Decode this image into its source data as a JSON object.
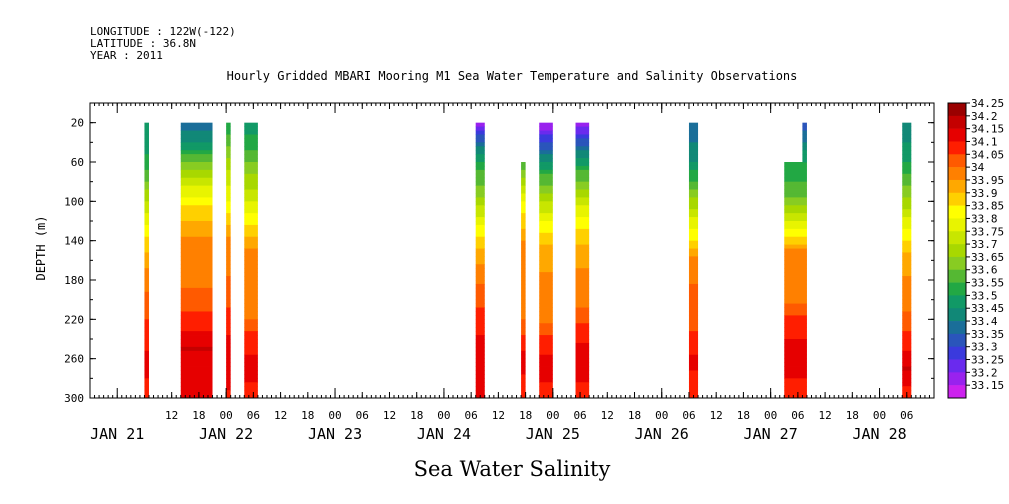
{
  "header": {
    "longitude": "LONGITUDE : 122W(-122)",
    "latitude": "LATITUDE : 36.8N",
    "year": "YEAR : 2011"
  },
  "chart_data": {
    "type": "heatmap",
    "title": "Hourly Gridded MBARI Mooring M1 Sea Water Temperature and Salinity Observations",
    "xlabel": "Sea Water Salinity",
    "ylabel": "DEPTH (m)",
    "x_unit": "hours from JAN 21 00:00",
    "xlim": [
      -6,
      180
    ],
    "ylim": [
      300,
      0
    ],
    "y_inverted": true,
    "y_ticks": [
      20,
      60,
      100,
      140,
      180,
      220,
      260,
      300
    ],
    "x_hour_ticks": [
      {
        "h": 12,
        "label": "12"
      },
      {
        "h": 18,
        "label": "18"
      },
      {
        "h": 24,
        "label": "00"
      },
      {
        "h": 30,
        "label": "06"
      },
      {
        "h": 36,
        "label": "12"
      },
      {
        "h": 42,
        "label": "18"
      },
      {
        "h": 48,
        "label": "00"
      },
      {
        "h": 54,
        "label": "06"
      },
      {
        "h": 60,
        "label": "12"
      },
      {
        "h": 66,
        "label": "18"
      },
      {
        "h": 72,
        "label": "00"
      },
      {
        "h": 78,
        "label": "06"
      },
      {
        "h": 84,
        "label": "12"
      },
      {
        "h": 90,
        "label": "18"
      },
      {
        "h": 96,
        "label": "00"
      },
      {
        "h": 102,
        "label": "06"
      },
      {
        "h": 108,
        "label": "12"
      },
      {
        "h": 114,
        "label": "18"
      },
      {
        "h": 120,
        "label": "00"
      },
      {
        "h": 126,
        "label": "06"
      },
      {
        "h": 132,
        "label": "12"
      },
      {
        "h": 138,
        "label": "18"
      },
      {
        "h": 144,
        "label": "00"
      },
      {
        "h": 150,
        "label": "06"
      },
      {
        "h": 156,
        "label": "12"
      },
      {
        "h": 162,
        "label": "18"
      },
      {
        "h": 168,
        "label": "00"
      },
      {
        "h": 174,
        "label": "06"
      }
    ],
    "x_date_ticks": [
      {
        "h": 0,
        "label": "JAN 21"
      },
      {
        "h": 24,
        "label": "JAN 22"
      },
      {
        "h": 48,
        "label": "JAN 23"
      },
      {
        "h": 72,
        "label": "JAN 24"
      },
      {
        "h": 96,
        "label": "JAN 25"
      },
      {
        "h": 120,
        "label": "JAN 26"
      },
      {
        "h": 144,
        "label": "JAN 27"
      },
      {
        "h": 168,
        "label": "JAN 28"
      }
    ],
    "colorbar": {
      "levels": [
        34.25,
        34.2,
        34.15,
        34.1,
        34.05,
        34,
        33.95,
        33.9,
        33.85,
        33.8,
        33.75,
        33.7,
        33.65,
        33.6,
        33.55,
        33.5,
        33.45,
        33.4,
        33.35,
        33.3,
        33.25,
        33.2,
        33.15
      ],
      "level_labels": [
        "34.25",
        "34.2",
        "34.15",
        "34.1",
        "34.05",
        "34",
        "33.95",
        "33.9",
        "33.85",
        "33.8",
        "33.75",
        "33.7",
        "33.65",
        "33.6",
        "33.55",
        "33.5",
        "33.45",
        "33.4",
        "33.35",
        "33.3",
        "33.25",
        "33.2",
        "33.15"
      ],
      "colors": [
        "#9a0000",
        "#c40000",
        "#e60000",
        "#ff1e00",
        "#ff5a00",
        "#ff8000",
        "#ffa800",
        "#ffd000",
        "#ffff00",
        "#e8f400",
        "#c8e600",
        "#a8d800",
        "#88cc22",
        "#55b833",
        "#22a844",
        "#119966",
        "#118877",
        "#1a6e99",
        "#2a55bb",
        "#3a3add",
        "#6a2aee",
        "#9922ee",
        "#cc22ee"
      ]
    },
    "segments": [
      {
        "start": 6,
        "end": 7,
        "top": 20,
        "profile": [
          [
            20,
            33.5
          ],
          [
            60,
            33.56
          ],
          [
            100,
            33.75
          ],
          [
            140,
            33.92
          ],
          [
            180,
            34.03
          ],
          [
            220,
            34.1
          ],
          [
            260,
            34.16
          ],
          [
            300,
            34.14
          ]
        ]
      },
      {
        "start": 14,
        "end": 21,
        "top": 20,
        "profile": [
          [
            20,
            33.42
          ],
          [
            40,
            33.5
          ],
          [
            70,
            33.72
          ],
          [
            100,
            33.88
          ],
          [
            140,
            34.02
          ],
          [
            190,
            34.05
          ],
          [
            220,
            34.12
          ],
          [
            250,
            34.2
          ],
          [
            300,
            34.16
          ]
        ]
      },
      {
        "start": 24,
        "end": 25,
        "top": 20,
        "profile": [
          [
            20,
            33.55
          ],
          [
            60,
            33.72
          ],
          [
            100,
            33.85
          ],
          [
            140,
            34.02
          ],
          [
            190,
            34.06
          ],
          [
            220,
            34.12
          ],
          [
            260,
            34.2
          ],
          [
            300,
            34.14
          ]
        ]
      },
      {
        "start": 28,
        "end": 31,
        "top": 20,
        "profile": [
          [
            20,
            33.5
          ],
          [
            60,
            33.65
          ],
          [
            100,
            33.8
          ],
          [
            150,
            34.0
          ],
          [
            220,
            34.05
          ],
          [
            240,
            34.13
          ],
          [
            270,
            34.17
          ],
          [
            300,
            34.13
          ]
        ]
      },
      {
        "start": 79,
        "end": 81,
        "top": 20,
        "profile": [
          [
            20,
            33.2
          ],
          [
            40,
            33.42
          ],
          [
            70,
            33.6
          ],
          [
            100,
            33.72
          ],
          [
            130,
            33.88
          ],
          [
            170,
            34.02
          ],
          [
            220,
            34.12
          ],
          [
            260,
            34.2
          ],
          [
            300,
            34.15
          ]
        ]
      },
      {
        "start": 89,
        "end": 90,
        "top": 60,
        "profile": [
          [
            60,
            33.6
          ],
          [
            100,
            33.85
          ],
          [
            140,
            34.0
          ],
          [
            220,
            34.05
          ],
          [
            260,
            34.17
          ],
          [
            300,
            34.12
          ]
        ]
      },
      {
        "start": 93,
        "end": 96,
        "top": 20,
        "profile": [
          [
            20,
            33.2
          ],
          [
            40,
            33.35
          ],
          [
            70,
            33.58
          ],
          [
            100,
            33.75
          ],
          [
            150,
            33.98
          ],
          [
            220,
            34.04
          ],
          [
            240,
            34.12
          ],
          [
            270,
            34.18
          ],
          [
            300,
            34.12
          ]
        ]
      },
      {
        "start": 101,
        "end": 104,
        "top": 20,
        "profile": [
          [
            20,
            33.2
          ],
          [
            40,
            33.38
          ],
          [
            70,
            33.6
          ],
          [
            100,
            33.78
          ],
          [
            150,
            33.98
          ],
          [
            210,
            34.05
          ],
          [
            230,
            34.12
          ],
          [
            260,
            34.19
          ],
          [
            300,
            34.12
          ]
        ]
      },
      {
        "start": 126,
        "end": 128,
        "top": 20,
        "profile": [
          [
            20,
            33.4
          ],
          [
            60,
            33.5
          ],
          [
            100,
            33.72
          ],
          [
            140,
            33.9
          ],
          [
            160,
            34.03
          ],
          [
            220,
            34.08
          ],
          [
            260,
            34.16
          ],
          [
            300,
            34.12
          ]
        ]
      },
      {
        "start": 147,
        "end": 152,
        "top": 60,
        "profile": [
          [
            60,
            33.55
          ],
          [
            90,
            33.62
          ],
          [
            120,
            33.8
          ],
          [
            150,
            34.0
          ],
          [
            200,
            34.04
          ],
          [
            230,
            34.14
          ],
          [
            260,
            34.17
          ],
          [
            300,
            34.13
          ]
        ]
      },
      {
        "start": 151,
        "end": 152,
        "top": 20,
        "profile": [
          [
            20,
            33.35
          ],
          [
            60,
            33.55
          ]
        ]
      },
      {
        "start": 173,
        "end": 175,
        "top": 20,
        "profile": [
          [
            20,
            33.45
          ],
          [
            60,
            33.55
          ],
          [
            100,
            33.72
          ],
          [
            140,
            33.9
          ],
          [
            160,
            33.98
          ],
          [
            210,
            34.04
          ],
          [
            240,
            34.12
          ],
          [
            270,
            34.2
          ],
          [
            300,
            34.12
          ]
        ]
      }
    ]
  }
}
